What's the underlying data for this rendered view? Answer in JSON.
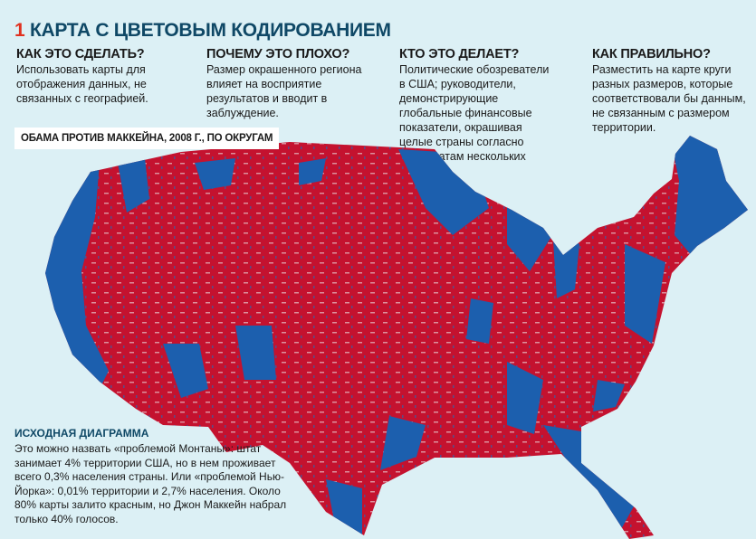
{
  "title": {
    "number": "1",
    "text": "КАРТА С ЦВЕТОВЫМ КОДИРОВАНИЕМ"
  },
  "columns": [
    {
      "heading": "КАК ЭТО СДЕЛАТЬ?",
      "body": "Использовать карты для отображения данных, не связанных с географией."
    },
    {
      "heading": "ПОЧЕМУ ЭТО ПЛОХО?",
      "body": "Размер окрашенного региона влияет на восприятие результатов и вводит в заблуждение."
    },
    {
      "heading": "КТО ЭТО ДЕЛАЕТ?",
      "body": "Политические обозреватели в США; руководители, демонстрирующие глобальные финансовые показатели, окрашивая целые страны согласно результатам нескольких городов."
    },
    {
      "heading": "КАК ПРАВИЛЬНО?",
      "body": "Разместить на карте круги разных размеров, которые соответствовали бы данным, не связанным с размером территории."
    }
  ],
  "map": {
    "label": "ОБАМА ПРОТИВ МАККЕЙНА, 2008 Г., ПО ОКРУГАМ",
    "colors": {
      "mccain": "#c4122f",
      "obama": "#1c5fae",
      "background": "#dcf0f5"
    }
  },
  "note": {
    "heading": "ИСХОДНАЯ ДИАГРАММА",
    "body": "Это можно назвать «проблемой Монтаны»: штат занимает 4% территории США, но в нем проживает всего 0,3% населения страны. Или «проблемой Нью-Йорка»: 0,01% территории и 2,7% населения. Около 80% карты залито красным, но Джон Маккейн набрал только 40% голосов."
  }
}
